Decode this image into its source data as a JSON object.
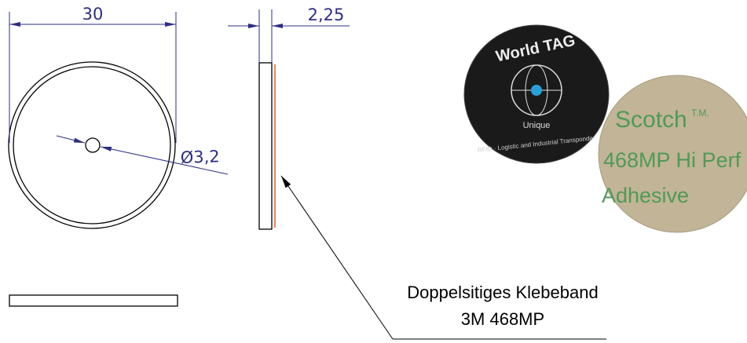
{
  "dimensions": {
    "diameter": "30",
    "thickness": "2,25",
    "hole": "Ø3,2"
  },
  "callout": {
    "line1": "Doppelsitiges Klebeband",
    "line2": "3M 468MP"
  },
  "photo": {
    "tag_brand": "World TAG",
    "tag_sub": "Unique",
    "tag_ring": "RFID · Logistic and Industrial Transponder",
    "tape_brand": "Scotch",
    "tape_tm": "T.M.",
    "tape_model": "468MP Hi Perf",
    "tape_type": "Adhesive"
  }
}
